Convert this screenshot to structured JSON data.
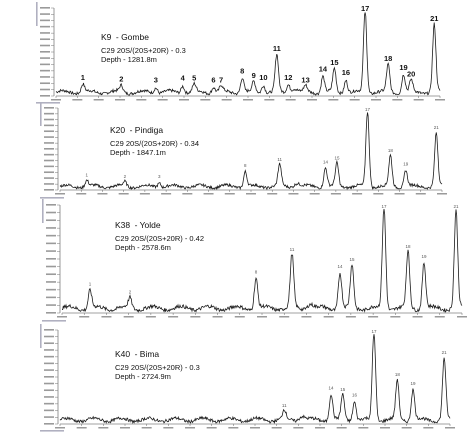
{
  "chart_data": [
    {
      "type": "line",
      "sample": "K9",
      "formation": "Gombe",
      "ratio_label": "C29 20S/(20S+20R) - 0.3",
      "depth_label": "Depth - 1281.8m",
      "peak_labels": [
        "1",
        "2",
        "3",
        "4",
        "5",
        "6",
        "7",
        "8",
        "9",
        "10",
        "11",
        "12",
        "13",
        "14",
        "15",
        "16",
        "17",
        "18",
        "19",
        "20",
        "21"
      ],
      "peaks": [
        {
          "label": "1",
          "x": 0.07,
          "y": 0.1
        },
        {
          "label": "2",
          "x": 0.17,
          "y": 0.08
        },
        {
          "label": "3",
          "x": 0.26,
          "y": 0.07
        },
        {
          "label": "4",
          "x": 0.33,
          "y": 0.09
        },
        {
          "label": "5",
          "x": 0.36,
          "y": 0.09
        },
        {
          "label": "6",
          "x": 0.41,
          "y": 0.07
        },
        {
          "label": "7",
          "x": 0.43,
          "y": 0.07
        },
        {
          "label": "8",
          "x": 0.485,
          "y": 0.18
        },
        {
          "label": "9",
          "x": 0.515,
          "y": 0.12
        },
        {
          "label": "10",
          "x": 0.54,
          "y": 0.1
        },
        {
          "label": "11",
          "x": 0.575,
          "y": 0.45
        },
        {
          "label": "12",
          "x": 0.605,
          "y": 0.1
        },
        {
          "label": "13",
          "x": 0.65,
          "y": 0.07
        },
        {
          "label": "14",
          "x": 0.695,
          "y": 0.2
        },
        {
          "label": "15",
          "x": 0.725,
          "y": 0.28
        },
        {
          "label": "16",
          "x": 0.755,
          "y": 0.16
        },
        {
          "label": "17",
          "x": 0.805,
          "y": 1.0
        },
        {
          "label": "18",
          "x": 0.865,
          "y": 0.33
        },
        {
          "label": "19",
          "x": 0.905,
          "y": 0.22
        },
        {
          "label": "20",
          "x": 0.925,
          "y": 0.14
        },
        {
          "label": "21",
          "x": 0.985,
          "y": 0.82
        }
      ]
    },
    {
      "type": "line",
      "sample": "K20",
      "formation": "Pindiga",
      "ratio_label": "C29 20S/(20S+20R) - 0.34",
      "depth_label": "Depth - 1847.1m",
      "peak_labels": [],
      "peaks": [
        {
          "label": "1",
          "x": 0.07,
          "y": 0.08
        },
        {
          "label": "2",
          "x": 0.17,
          "y": 0.06
        },
        {
          "label": "3",
          "x": 0.26,
          "y": 0.06
        },
        {
          "label": "8",
          "x": 0.485,
          "y": 0.2
        },
        {
          "label": "11",
          "x": 0.575,
          "y": 0.28
        },
        {
          "label": "14",
          "x": 0.695,
          "y": 0.25
        },
        {
          "label": "15",
          "x": 0.725,
          "y": 0.3
        },
        {
          "label": "17",
          "x": 0.805,
          "y": 1.0
        },
        {
          "label": "18",
          "x": 0.865,
          "y": 0.4
        },
        {
          "label": "19",
          "x": 0.905,
          "y": 0.22
        },
        {
          "label": "21",
          "x": 0.985,
          "y": 0.7
        }
      ]
    },
    {
      "type": "line",
      "sample": "K38",
      "formation": "Yolde",
      "ratio_label": "C29 20S/(20S+20R) - 0.42",
      "depth_label": "Depth - 2578.6m",
      "peak_labels": [],
      "peaks": [
        {
          "label": "1",
          "x": 0.07,
          "y": 0.18
        },
        {
          "label": "2",
          "x": 0.17,
          "y": 0.1
        },
        {
          "label": "8",
          "x": 0.485,
          "y": 0.3
        },
        {
          "label": "11",
          "x": 0.575,
          "y": 0.52
        },
        {
          "label": "14",
          "x": 0.695,
          "y": 0.35
        },
        {
          "label": "15",
          "x": 0.725,
          "y": 0.42
        },
        {
          "label": "17",
          "x": 0.805,
          "y": 1.0
        },
        {
          "label": "18",
          "x": 0.865,
          "y": 0.55
        },
        {
          "label": "19",
          "x": 0.905,
          "y": 0.45
        },
        {
          "label": "21",
          "x": 0.985,
          "y": 0.95
        }
      ]
    },
    {
      "type": "line",
      "sample": "K40",
      "formation": "Bima",
      "ratio_label": "C29 20S/(20S+20R) - 0.3",
      "depth_label": "Depth - 2724.9m",
      "peak_labels": [],
      "peaks": [
        {
          "label": "11",
          "x": 0.575,
          "y": 0.1
        },
        {
          "label": "14",
          "x": 0.695,
          "y": 0.3
        },
        {
          "label": "15",
          "x": 0.725,
          "y": 0.28
        },
        {
          "label": "16",
          "x": 0.755,
          "y": 0.22
        },
        {
          "label": "17",
          "x": 0.805,
          "y": 1.0
        },
        {
          "label": "18",
          "x": 0.865,
          "y": 0.45
        },
        {
          "label": "19",
          "x": 0.905,
          "y": 0.35
        },
        {
          "label": "21",
          "x": 0.985,
          "y": 0.7
        }
      ]
    }
  ]
}
